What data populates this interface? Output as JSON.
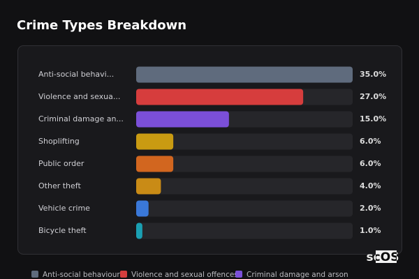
{
  "chart_data": {
    "type": "bar",
    "title": "Crime Types Breakdown",
    "categories": [
      "Anti-social behavi...",
      "Violence and sexua...",
      "Criminal damage an...",
      "Shoplifting",
      "Public order",
      "Other theft",
      "Vehicle crime",
      "Bicycle theft"
    ],
    "values": [
      35,
      27,
      15,
      6,
      6,
      4,
      2,
      1
    ],
    "value_labels": [
      "35.0%",
      "27.0%",
      "15.0%",
      "6.0%",
      "6.0%",
      "4.0%",
      "2.0%",
      "1.0%"
    ],
    "colors": [
      "#5f6b7d",
      "#d63d3d",
      "#7b4fd8",
      "#c99b12",
      "#d2661f",
      "#c98b16",
      "#3a78d8",
      "#1a9fb2"
    ],
    "xlim": [
      0,
      35
    ],
    "legend": [
      {
        "name": "Anti-social behaviour",
        "color": "#5f6b7d"
      },
      {
        "name": "Violence and sexual offences",
        "color": "#d63d3d"
      },
      {
        "name": "Criminal damage and arson",
        "color": "#7b4fd8"
      }
    ]
  },
  "logo": "scOS"
}
